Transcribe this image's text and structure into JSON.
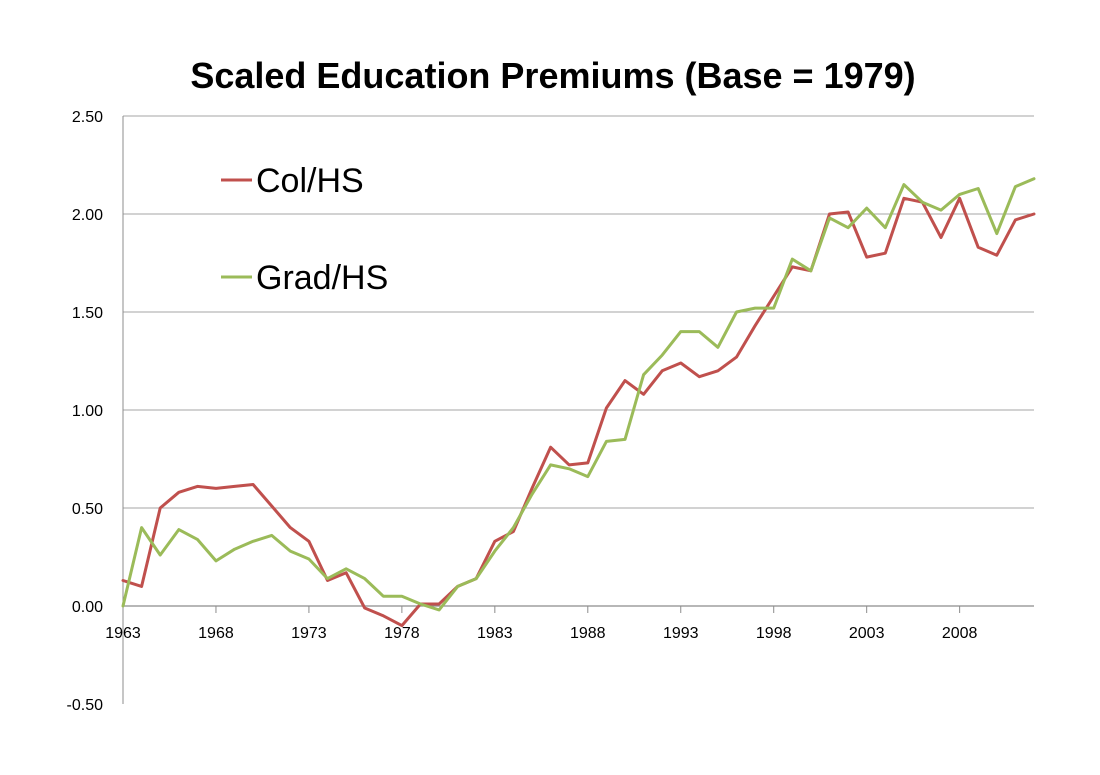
{
  "chart_data": {
    "type": "line",
    "title": "Scaled Education Premiums (Base = 1979)",
    "xlabel": "",
    "ylabel": "",
    "ylim": [
      -0.5,
      2.5
    ],
    "xlim": [
      1963,
      2012
    ],
    "x_ticks": [
      "1963",
      "1968",
      "1973",
      "1978",
      "1983",
      "1988",
      "1993",
      "1998",
      "2003",
      "2008"
    ],
    "y_ticks": [
      "2.50",
      "2.00",
      "1.50",
      "1.00",
      "0.50",
      "0.00",
      "-0.50"
    ],
    "grid": "horizontal",
    "legend_position": "upper-left",
    "x": [
      1963,
      1964,
      1965,
      1966,
      1967,
      1968,
      1969,
      1970,
      1971,
      1972,
      1973,
      1974,
      1975,
      1976,
      1977,
      1978,
      1979,
      1980,
      1981,
      1982,
      1983,
      1984,
      1985,
      1986,
      1987,
      1988,
      1989,
      1990,
      1991,
      1992,
      1993,
      1994,
      1995,
      1996,
      1997,
      1998,
      1999,
      2000,
      2001,
      2002,
      2003,
      2004,
      2005,
      2006,
      2007,
      2008,
      2009,
      2010,
      2011,
      2012
    ],
    "series": [
      {
        "name": "Col/HS",
        "color": "#c0504d",
        "values": [
          0.13,
          0.1,
          0.5,
          0.58,
          0.61,
          0.6,
          0.61,
          0.62,
          0.51,
          0.4,
          0.33,
          0.13,
          0.17,
          -0.01,
          -0.05,
          -0.1,
          0.01,
          0.01,
          0.1,
          0.14,
          0.33,
          0.38,
          0.6,
          0.81,
          0.72,
          0.73,
          1.01,
          1.15,
          1.08,
          1.2,
          1.24,
          1.17,
          1.2,
          1.27,
          1.43,
          1.58,
          1.73,
          1.71,
          2.0,
          2.01,
          1.78,
          1.8,
          2.08,
          2.06,
          1.88,
          2.08,
          1.83,
          1.79,
          1.97,
          2.0
        ]
      },
      {
        "name": "Grad/HS",
        "color": "#9bbb59",
        "values": [
          0.0,
          0.4,
          0.26,
          0.39,
          0.34,
          0.23,
          0.29,
          0.33,
          0.36,
          0.28,
          0.24,
          0.14,
          0.19,
          0.14,
          0.05,
          0.05,
          0.01,
          -0.02,
          0.1,
          0.14,
          0.28,
          0.4,
          0.57,
          0.72,
          0.7,
          0.66,
          0.84,
          0.85,
          1.18,
          1.28,
          1.4,
          1.4,
          1.32,
          1.5,
          1.52,
          1.52,
          1.77,
          1.71,
          1.98,
          1.93,
          2.03,
          1.93,
          2.15,
          2.06,
          2.02,
          2.1,
          2.13,
          1.9,
          2.14,
          2.18
        ]
      }
    ]
  }
}
